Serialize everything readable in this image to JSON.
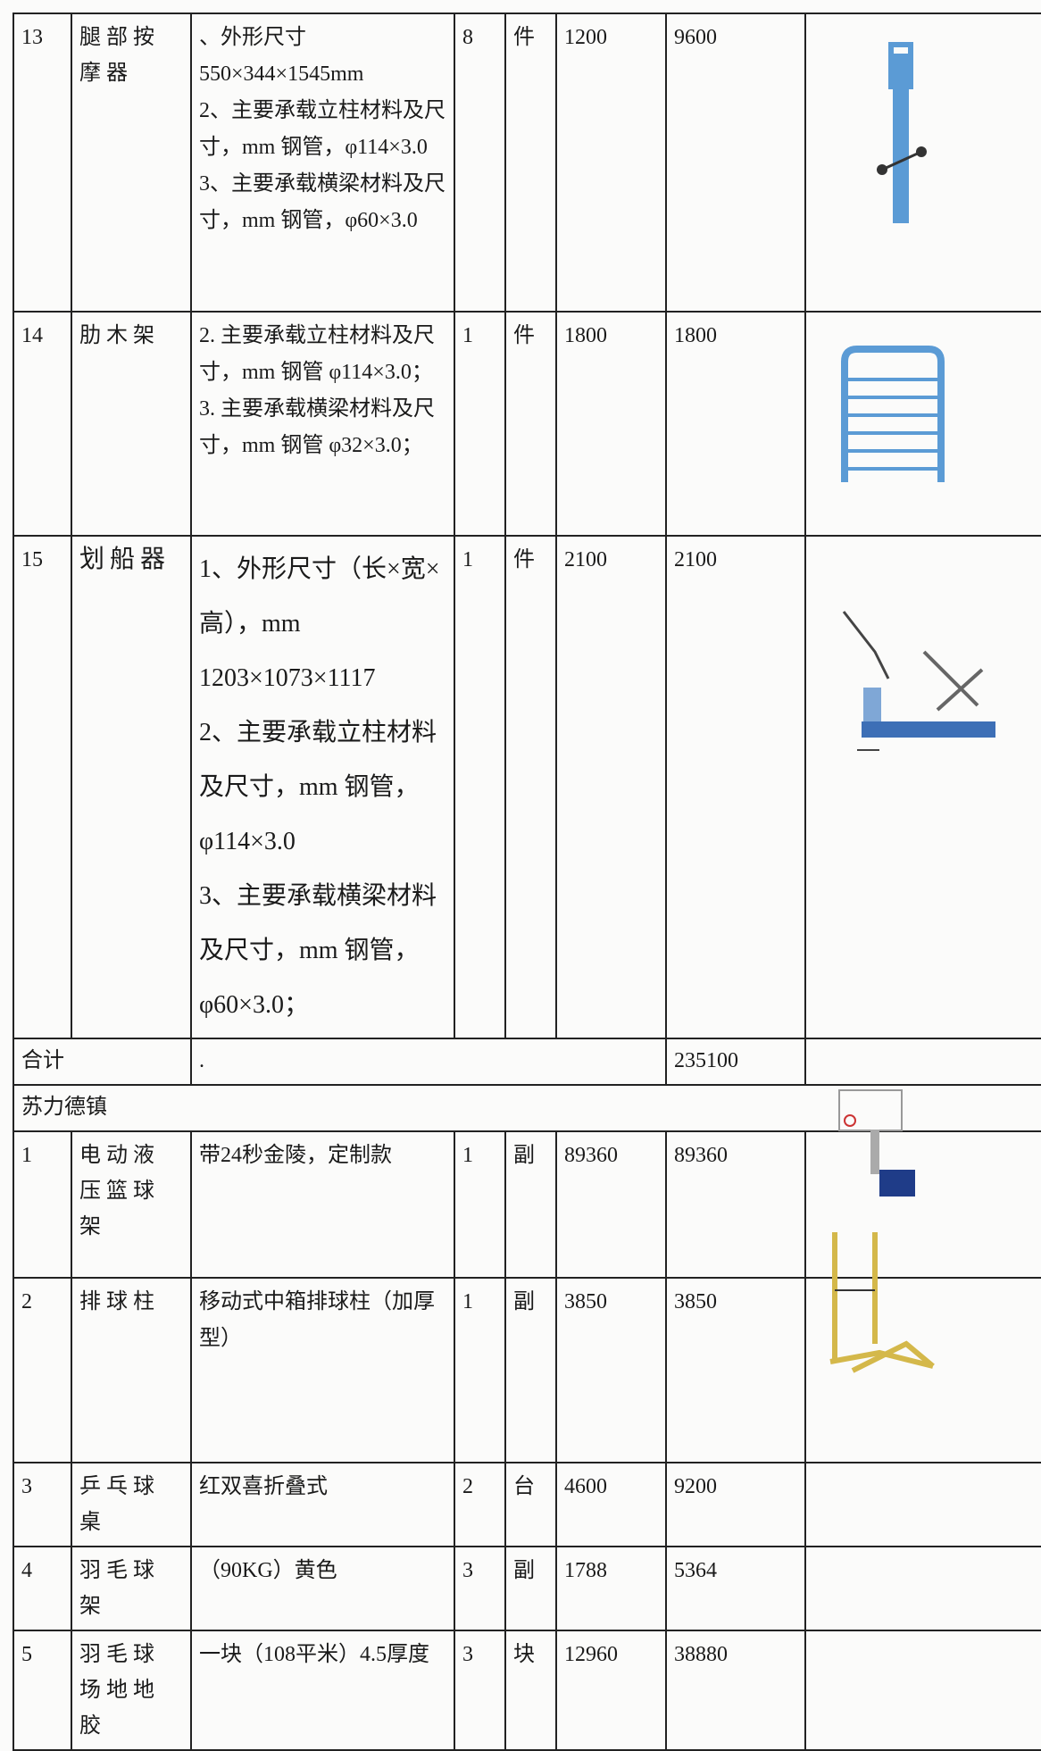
{
  "table": {
    "rows": [
      {
        "no": 13,
        "name": "腿部按摩器",
        "spec": [
          "、外形尺寸550×344×1545mm",
          "2、主要承载立柱材料及尺寸，mm 钢管，φ114×3.0",
          "3、主要承载横梁材料及尺寸，mm 钢管，φ60×3.0"
        ],
        "qty": 8,
        "unit": "件",
        "price": 1200,
        "total": 9600
      },
      {
        "no": 14,
        "name": "肋木架",
        "spec": [
          "2. 主要承载立柱材料及尺寸，mm 钢管 φ114×3.0；",
          "3. 主要承载横梁材料及尺寸，mm 钢管 φ32×3.0；"
        ],
        "qty": 1,
        "unit": "件",
        "price": 1800,
        "total": 1800
      },
      {
        "no": 15,
        "name": "划船器",
        "spec": [
          "1、外形尺寸（长×宽×高），mm 1203×1073×1117",
          "2、主要承载立柱材料及尺寸，mm 钢管，φ114×3.0",
          "3、主要承载横梁材料及尺寸，mm 钢管，φ60×3.0；"
        ],
        "qty": 1,
        "unit": "件",
        "price": 2100,
        "total": 2100
      }
    ],
    "subtotal": {
      "label": "合计",
      "note": ".",
      "total": 235100
    },
    "section": "苏力德镇",
    "rows2": [
      {
        "no": 1,
        "name": "电动液压篮球架",
        "spec": [
          "带24秒金陵，定制款"
        ],
        "qty": 1,
        "unit": "副",
        "price": 89360,
        "total": 89360
      },
      {
        "no": 2,
        "name": "排球柱",
        "spec": [
          "移动式中箱排球柱（加厚型）"
        ],
        "qty": 1,
        "unit": "副",
        "price": 3850,
        "total": 3850
      },
      {
        "no": 3,
        "name": "乒乓球桌",
        "spec": [
          "红双喜折叠式"
        ],
        "qty": 2,
        "unit": "台",
        "price": 4600,
        "total": 9200
      },
      {
        "no": 4,
        "name": "羽毛球架",
        "spec": [
          "（90KG）黄色"
        ],
        "qty": 3,
        "unit": "副",
        "price": 1788,
        "total": 5364
      },
      {
        "no": 5,
        "name": "羽毛球场地地胶",
        "spec": [
          "一块（108平米）4.5厚度"
        ],
        "qty": 3,
        "unit": "块",
        "price": 12960,
        "total": 38880
      }
    ]
  }
}
